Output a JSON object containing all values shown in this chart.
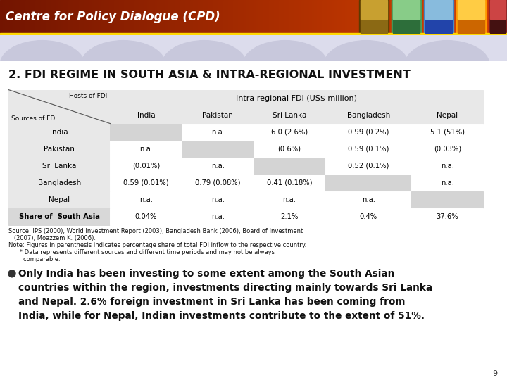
{
  "title": "2. FDI REGIME IN SOUTH ASIA & INTRA-REGIONAL INVESTMENT",
  "banner_text": "Centre for Policy Dialogue (CPD)",
  "col_headers": [
    "India",
    "Pakistan",
    "Sri Lanka",
    "Bangladesh",
    "Nepal"
  ],
  "rows": [
    [
      "India",
      "",
      "n.a.",
      "6.0 (2.6%)",
      "0.99 (0.2%)",
      "5.1 (51%)"
    ],
    [
      "Pakistan",
      "n.a.",
      "",
      "(0.6%)",
      "0.59 (0.1%)",
      "(0.03%)"
    ],
    [
      "Sri Lanka",
      "(0.01%)",
      "n.a.",
      "",
      "0.52 (0.1%)",
      "n.a."
    ],
    [
      "Bangladesh",
      "0.59 (0.01%)",
      "0.79 (0.08%)",
      "0.41 (0.18%)",
      "",
      "n.a."
    ],
    [
      "Nepal",
      "n.a.",
      "n.a.",
      "n.a.",
      "n.a.",
      ""
    ]
  ],
  "share_row": [
    "Share of  South Asia",
    "0.04%",
    "n.a.",
    "2.1%",
    "0.4%",
    "37.6%"
  ],
  "source_line1": "Source: IPS (2000), World Investment Report (2003), Bangladesh Bank (2006), Board of Investment",
  "source_line2": "   (2007), Moazzem K. (2006).",
  "source_line3": "Note: Figures in parenthesis indicates percentage share of total FDI inflow to the respective country.",
  "source_line4": "      * Data represents different sources and different time periods and may not be always",
  "source_line5": "        comparable.",
  "bullet_text": "Only India has been investing to some extent among the South Asian\ncountries within the region, investments directing mainly towards Sri Lanka\nand Nepal. 2.6% foreign investment in Sri Lanka has been coming from\nIndia, while for Nepal, Indian investments contribute to the extent of 51%.",
  "page_number": "9",
  "bg_color": "#f5f5f5",
  "cell_gray": "#d4d4d4",
  "cell_white": "#ffffff",
  "header_gray": "#e8e8e8",
  "share_label_gray": "#d8d8d8"
}
